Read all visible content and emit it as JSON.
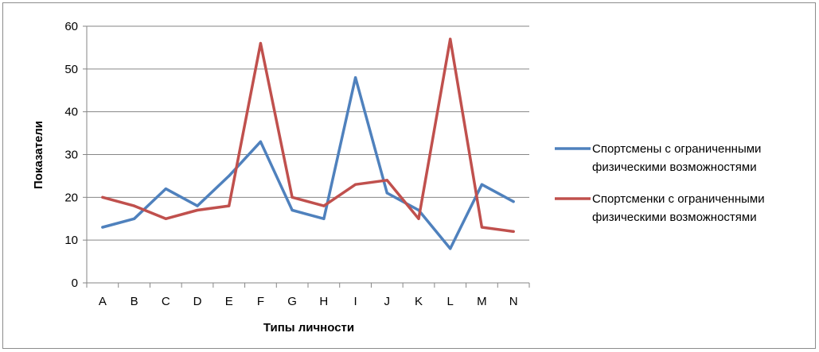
{
  "chart_data": {
    "type": "line",
    "categories": [
      "A",
      "B",
      "C",
      "D",
      "E",
      "F",
      "G",
      "H",
      "I",
      "J",
      "K",
      "L",
      "M",
      "N"
    ],
    "ylim": [
      0,
      60
    ],
    "yticks": [
      0,
      10,
      20,
      30,
      40,
      50,
      60
    ],
    "xlabel": "Типы личности",
    "ylabel": "Показатели",
    "grid": true,
    "legend_position": "right",
    "series": [
      {
        "name_lines": [
          "Спортсмены с ограниченными",
          "физическими возможностями"
        ],
        "color": "#4f81bd",
        "values": [
          13,
          15,
          22,
          18,
          25,
          33,
          17,
          15,
          48,
          21,
          17,
          8,
          23,
          19
        ]
      },
      {
        "name_lines": [
          "Спортсменки с ограниченными",
          "физическими возможностями"
        ],
        "color": "#c0504d",
        "values": [
          20,
          18,
          15,
          17,
          18,
          56,
          20,
          18,
          23,
          24,
          15,
          57,
          13,
          12
        ]
      }
    ]
  }
}
